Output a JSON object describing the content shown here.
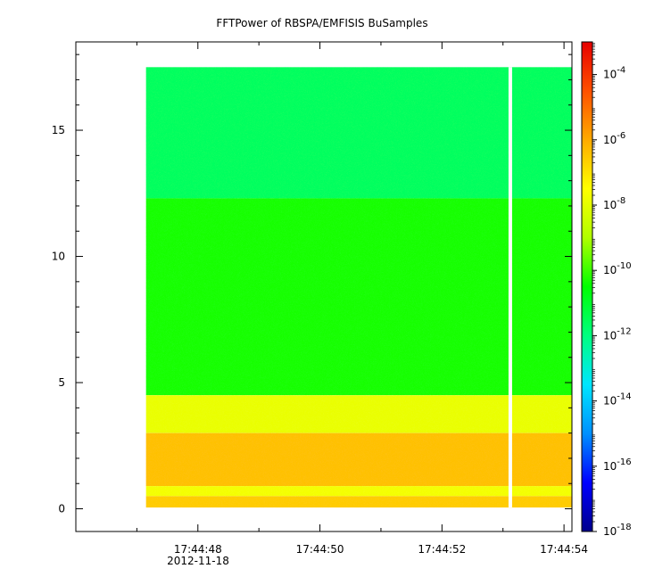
{
  "chart_data": {
    "type": "heatmap",
    "title": "FFTPower of RBSPA/EMFISIS  BuSamples",
    "xlabel": "",
    "ylabel": "",
    "x_tick_labels": [
      "17:44:48",
      "17:44:50",
      "17:44:52",
      "17:44:54"
    ],
    "x_tick_values_s": [
      48,
      50,
      52,
      54
    ],
    "x_date_label": "2012-11-18",
    "xlim_s": [
      46.0,
      54.13
    ],
    "data_xlim_s": [
      47.15,
      54.13
    ],
    "gap_x_s": 53.12,
    "y_ticks": [
      0,
      5,
      10,
      15
    ],
    "ylim": [
      -0.9,
      18.5
    ],
    "data_ylim": [
      0.05,
      17.5
    ],
    "colorbar": {
      "scale": "log",
      "range": [
        1e-18,
        0.001
      ],
      "ticks": [
        {
          "base": "10",
          "exp": "-4",
          "value": 0.0001
        },
        {
          "base": "10",
          "exp": "-6",
          "value": 1e-06
        },
        {
          "base": "10",
          "exp": "-8",
          "value": 1e-08
        },
        {
          "base": "10",
          "exp": "-10",
          "value": 1e-10
        },
        {
          "base": "10",
          "exp": "-12",
          "value": 1e-12
        },
        {
          "base": "10",
          "exp": "-14",
          "value": 1e-14
        },
        {
          "base": "10",
          "exp": "-16",
          "value": 1e-16
        },
        {
          "base": "10",
          "exp": "-18",
          "value": 1e-18
        }
      ],
      "colors": [
        "#00008c",
        "#0000ff",
        "#0090ff",
        "#00e6ff",
        "#00ff80",
        "#00ff00",
        "#b0ff00",
        "#ffff00",
        "#ffaa00",
        "#ff5000",
        "#e60000"
      ]
    },
    "bands": [
      {
        "y0": 12.3,
        "y1": 17.5,
        "log_power": -11.6
      },
      {
        "y0": 4.5,
        "y1": 12.3,
        "log_power": -10.3
      },
      {
        "y0": 3.0,
        "y1": 4.5,
        "log_power": -7.9
      },
      {
        "y0": 0.9,
        "y1": 3.0,
        "log_power": -6.4
      },
      {
        "y0": 0.5,
        "y1": 0.9,
        "log_power": -7.7
      },
      {
        "y0": 0.05,
        "y1": 0.5,
        "log_power": -6.6
      }
    ]
  }
}
